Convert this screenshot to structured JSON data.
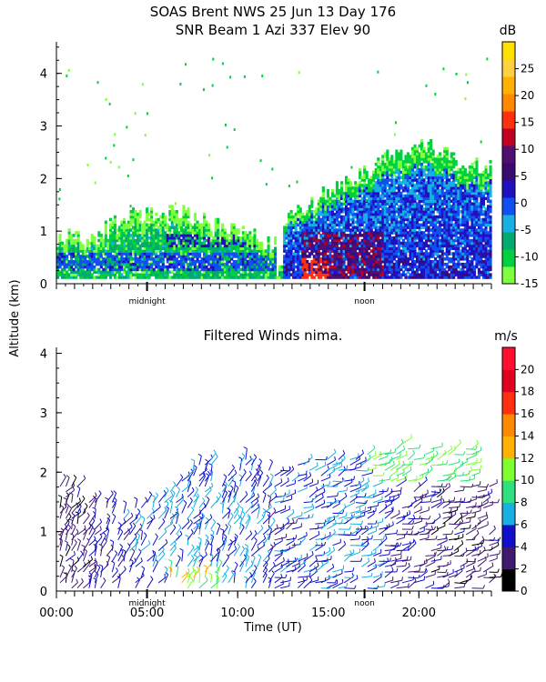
{
  "figure": {
    "title_line1": "SOAS Brent NWS  25 Jun 13 Day 176",
    "title_line2": "SNR Beam 1 Azi 337 Elev 90",
    "y_shared_label": "Altitude (km)"
  },
  "chart_data": [
    {
      "type": "heatmap",
      "title": "SNR Beam 1 Azi 337 Elev 90",
      "ylabel": "Altitude (km)",
      "xlim": [
        0,
        24
      ],
      "ylim": [
        0,
        4.6
      ],
      "y_ticks": [
        0,
        1,
        2,
        3,
        4
      ],
      "x_markers": [
        {
          "x": 5,
          "label": "midnight"
        },
        {
          "x": 17,
          "label": "noon"
        }
      ],
      "colorbar": {
        "unit": "dB",
        "ticks": [
          -15,
          -10,
          -5,
          0,
          5,
          10,
          15,
          20,
          25
        ],
        "range": [
          -15,
          30
        ],
        "colors": [
          "#7fff3f",
          "#00d040",
          "#00aa70",
          "#18b0e0",
          "#1050f0",
          "#2010c0",
          "#3a0a70",
          "#501070",
          "#c00020",
          "#ff3010",
          "#ff8a00",
          "#ffb000",
          "#ffd040",
          "#ffe000"
        ]
      },
      "regions": [
        {
          "name": "low-layer",
          "x": [
            0,
            12
          ],
          "alt_top": [
            0.85,
            0.8,
            1.2,
            1.3,
            1.3,
            1.1,
            1.0,
            0.7
          ],
          "snr_db": -5
        },
        {
          "name": "boundary-layer-day",
          "x": [
            12.5,
            24
          ],
          "alt_top": [
            1.2,
            1.6,
            2.0,
            2.4,
            2.6,
            2.3,
            2.2
          ],
          "snr_db": 0
        },
        {
          "name": "peak-echo",
          "x": [
            13.5,
            16.5
          ],
          "alt_top": [
            0.6,
            0.9
          ],
          "snr_db": 15
        }
      ]
    },
    {
      "type": "scatter",
      "title": "Filtered Winds nima.",
      "ylabel": "Altitude (km)",
      "xlabel": "Time (UT)",
      "xlim": [
        0,
        24
      ],
      "ylim": [
        0,
        4.1
      ],
      "x_ticks": [
        0,
        5,
        10,
        15,
        20
      ],
      "x_tick_labels": [
        "00:00",
        "05:00",
        "10:00",
        "15:00",
        "20:00"
      ],
      "y_ticks": [
        0,
        1,
        2,
        3,
        4
      ],
      "x_markers": [
        {
          "x": 5,
          "label": "midnight"
        },
        {
          "x": 17,
          "label": "noon"
        }
      ],
      "colorbar": {
        "unit": "m/s",
        "ticks": [
          0,
          2,
          4,
          6,
          8,
          10,
          12,
          14,
          16,
          18,
          20
        ],
        "range": [
          0,
          22
        ],
        "colors": [
          "#000000",
          "#401a70",
          "#1010c8",
          "#18b0e0",
          "#30e080",
          "#80ff30",
          "#ffb000",
          "#ff8a00",
          "#ff3010",
          "#e00020",
          "#ff1030"
        ]
      },
      "series": [
        {
          "x": 1,
          "alt_top": 1.8,
          "speed": 3
        },
        {
          "x": 4,
          "alt_top": 1.4,
          "speed": 5
        },
        {
          "x": 6,
          "alt_top": 1.6,
          "speed": 6
        },
        {
          "x": 8,
          "alt_top": 2.2,
          "speed": 6
        },
        {
          "x": 10,
          "alt_top": 2.3,
          "speed": 6
        },
        {
          "x": 12,
          "alt_top": 2.0,
          "speed": 5
        },
        {
          "x": 15,
          "alt_top": 2.3,
          "speed": 6
        },
        {
          "x": 17,
          "alt_top": 2.3,
          "speed": 6
        },
        {
          "x": 19,
          "alt_top": 2.5,
          "speed": 4
        },
        {
          "x": 21,
          "alt_top": 2.4,
          "speed": 3
        },
        {
          "x": 23,
          "alt_top": 2.4,
          "speed": 3
        }
      ]
    }
  ]
}
